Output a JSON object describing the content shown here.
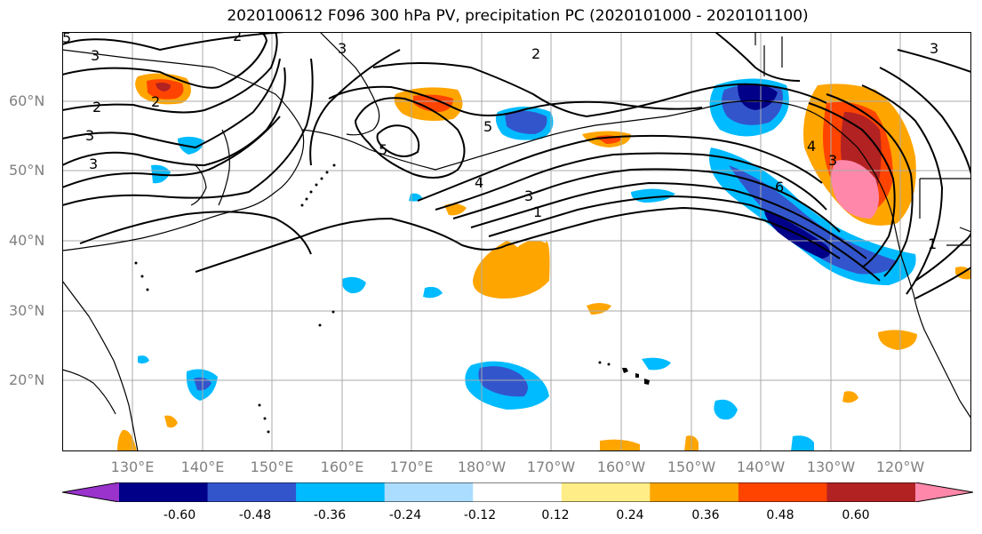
{
  "title": "2020100612 F096 300 hPa PV, precipitation PC (2020101000 - 2020101100)",
  "lat_labels": [
    "60°N",
    "50°N",
    "40°N",
    "30°N",
    "20°N"
  ],
  "lon_labels": [
    "130°E",
    "140°E",
    "150°E",
    "160°E",
    "170°E",
    "180°W",
    "170°W",
    "160°W",
    "150°W",
    "140°W",
    "130°W",
    "120°W"
  ],
  "contour_labels": [
    "3",
    "2",
    "3",
    "2",
    "5",
    "2",
    "3",
    "3",
    "2",
    "3",
    "5",
    "5",
    "4",
    "3",
    "1",
    "6",
    "4",
    "3",
    "1"
  ],
  "colorbar": {
    "colors": [
      "#9933cc",
      "#000088",
      "#3355cc",
      "#00bbff",
      "#aaddff",
      "#ffffff",
      "#ffee88",
      "#ffa500",
      "#ff4400",
      "#b22222",
      "#ff88aa"
    ],
    "tick_labels": [
      "-0.60",
      "-0.48",
      "-0.36",
      "-0.24",
      "-0.12",
      "0.12",
      "0.24",
      "0.36",
      "0.48",
      "0.60"
    ]
  }
}
